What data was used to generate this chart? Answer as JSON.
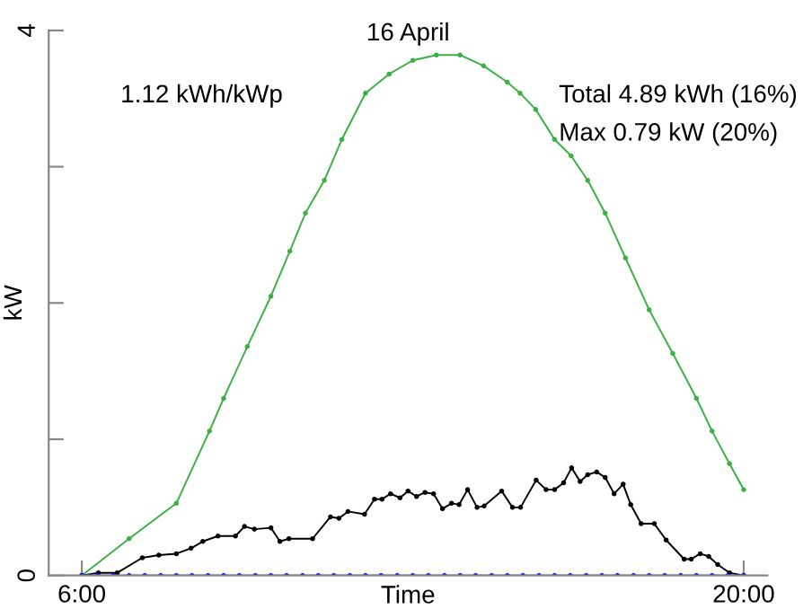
{
  "chart_data": {
    "type": "line",
    "title": "16 April",
    "xlabel": "Time",
    "ylabel": "kW",
    "annotations": [
      "1.12 kWh/kWp",
      "Total 4.89 kWh (16%)",
      "Max 0.79 kW (20%)"
    ],
    "xlim": [
      5.3,
      20.5
    ],
    "xticks": [
      {
        "value": 6,
        "label": "6:00"
      },
      {
        "value": 20,
        "label": "20:00"
      }
    ],
    "ylim": [
      0,
      4
    ],
    "yticks": [
      0,
      {
        "value": 1,
        "label": null
      },
      {
        "value": 2,
        "label": null
      },
      {
        "value": 3,
        "label": null
      },
      4
    ],
    "grid": false,
    "legend": false,
    "marker": "circle",
    "line_style": "solid",
    "series": [
      {
        "color": "#3cb043",
        "x": [
          6,
          7,
          8,
          8.7,
          9,
          9.5,
          10,
          10.4,
          10.73,
          11.13,
          11.5,
          12,
          12.5,
          13,
          13.5,
          14,
          14.5,
          15,
          15.27,
          15.6,
          16,
          16.35,
          16.7,
          17.07,
          17.5,
          18,
          18.5,
          19,
          19.33,
          19.7,
          20
        ],
        "values": [
          0,
          0.27,
          0.53,
          1.06,
          1.3,
          1.68,
          2.05,
          2.38,
          2.66,
          2.9,
          3.2,
          3.54,
          3.68,
          3.78,
          3.82,
          3.82,
          3.74,
          3.62,
          3.54,
          3.42,
          3.2,
          3.08,
          2.9,
          2.66,
          2.33,
          1.95,
          1.63,
          1.3,
          1.06,
          0.82,
          0.63
        ]
      },
      {
        "color": "#000000",
        "x": [
          6.0,
          6.35,
          6.75,
          7.28,
          7.63,
          8.0,
          8.31,
          8.56,
          8.88,
          9.25,
          9.44,
          9.65,
          10.0,
          10.19,
          10.38,
          10.88,
          11.26,
          11.44,
          11.63,
          11.98,
          12.19,
          12.35,
          12.53,
          12.73,
          12.9,
          13.08,
          13.26,
          13.44,
          13.63,
          13.82,
          13.98,
          14.16,
          14.36,
          14.51,
          14.88,
          15.11,
          15.28,
          15.61,
          15.82,
          16.0,
          16.19,
          16.36,
          16.54,
          16.7,
          16.89,
          17.07,
          17.26,
          17.45,
          17.61,
          17.83,
          18.11,
          18.36,
          18.74,
          18.89,
          19.08,
          19.26,
          19.45,
          19.7,
          20.0
        ],
        "values": [
          0,
          0.02,
          0.02,
          0.13,
          0.15,
          0.16,
          0.2,
          0.25,
          0.29,
          0.29,
          0.36,
          0.34,
          0.35,
          0.25,
          0.27,
          0.27,
          0.43,
          0.42,
          0.47,
          0.45,
          0.56,
          0.56,
          0.6,
          0.57,
          0.62,
          0.58,
          0.61,
          0.6,
          0.49,
          0.53,
          0.52,
          0.63,
          0.5,
          0.51,
          0.62,
          0.5,
          0.5,
          0.7,
          0.63,
          0.63,
          0.68,
          0.79,
          0.69,
          0.74,
          0.76,
          0.72,
          0.6,
          0.67,
          0.52,
          0.38,
          0.38,
          0.26,
          0.12,
          0.12,
          0.16,
          0.14,
          0.08,
          0.02,
          0
        ]
      },
      {
        "color": "#0000ff",
        "x": [
          6,
          6.33,
          6.67,
          7,
          7.33,
          7.67,
          8,
          8.33,
          8.67,
          9,
          9.33,
          9.67,
          10,
          10.33,
          10.67,
          11,
          11.33,
          11.67,
          12,
          12.33,
          12.67,
          13,
          13.33,
          13.67,
          14,
          14.33,
          14.67,
          15,
          15.33,
          15.67,
          16,
          16.33,
          16.67,
          17,
          17.33,
          17.67,
          18,
          18.33,
          18.67,
          19,
          19.33,
          19.67,
          20
        ],
        "values": [
          0,
          0,
          0,
          0,
          0,
          0,
          0,
          0,
          0,
          0,
          0,
          0,
          0,
          0,
          0,
          0,
          0,
          0,
          0,
          0,
          0,
          0,
          0,
          0,
          0,
          0,
          0,
          0,
          0,
          0,
          0,
          0,
          0,
          0,
          0,
          0,
          0,
          0,
          0,
          0,
          0,
          0,
          0
        ]
      }
    ]
  }
}
